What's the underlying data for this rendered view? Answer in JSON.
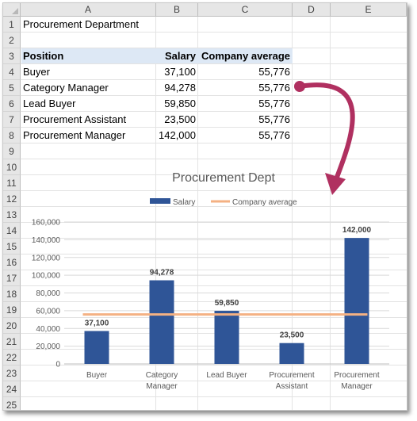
{
  "sheet": {
    "columns": [
      "A",
      "B",
      "C",
      "D",
      "E"
    ],
    "rows": [
      "1",
      "2",
      "3",
      "4",
      "5",
      "6",
      "7",
      "8",
      "9",
      "10",
      "11",
      "12",
      "13",
      "14",
      "15",
      "16",
      "17",
      "18",
      "19",
      "20",
      "21",
      "22",
      "23",
      "24",
      "25"
    ],
    "title": "Procurement Department",
    "table": {
      "headers": [
        "Position",
        "Salary",
        "Company average"
      ],
      "rows": [
        [
          "Buyer",
          "37,100",
          "55,776"
        ],
        [
          "Category Manager",
          "94,278",
          "55,776"
        ],
        [
          "Lead Buyer",
          "59,850",
          "55,776"
        ],
        [
          "Procurement Assistant",
          "23,500",
          "55,776"
        ],
        [
          "Procurement Manager",
          "142,000",
          "55,776"
        ]
      ]
    }
  },
  "colors": {
    "bar": "#2f5597",
    "line": "#f4b183",
    "arrow": "#b03060",
    "header_band": "#dde8f5"
  },
  "chart_data": {
    "type": "bar",
    "title": "Procurement Dept",
    "categories": [
      [
        "Buyer"
      ],
      [
        "Category",
        "Manager"
      ],
      [
        "Lead Buyer"
      ],
      [
        "Procurement",
        "Assistant"
      ],
      [
        "Procurement",
        "Manager"
      ]
    ],
    "series": [
      {
        "name": "Salary",
        "type": "bar",
        "values": [
          37100,
          94278,
          59850,
          23500,
          142000
        ],
        "labels": [
          "37,100",
          "94,278",
          "59,850",
          "23,500",
          "142,000"
        ]
      },
      {
        "name": "Company average",
        "type": "line",
        "values": [
          55776,
          55776,
          55776,
          55776,
          55776
        ]
      }
    ],
    "yticks": [
      "0",
      "20,000",
      "40,000",
      "60,000",
      "80,000",
      "100,000",
      "120,000",
      "140,000",
      "160,000"
    ],
    "ylim": [
      0,
      160000
    ],
    "legend_position": "top",
    "grid": true
  }
}
